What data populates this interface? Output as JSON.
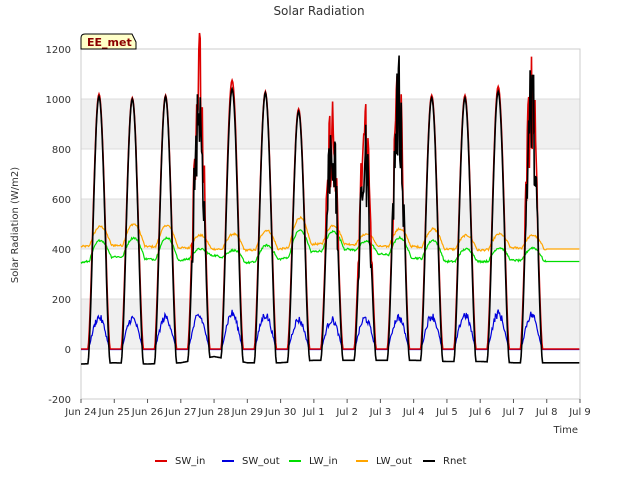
{
  "chart_data": {
    "type": "line",
    "title": "Solar Radiation",
    "xlabel": "Time",
    "ylabel": "Solar Radiation (W/m2)",
    "badge": "EE_met",
    "x_unit": "day",
    "xlim": [
      "Jun 24",
      "Jul 9"
    ],
    "ylim": [
      -200,
      1200
    ],
    "yticks": [
      -200,
      0,
      200,
      400,
      600,
      800,
      1000,
      1200
    ],
    "xticks": [
      "Jun 24",
      "Jun 25",
      "Jun 26",
      "Jun 27",
      "Jun 28",
      "Jun 29",
      "Jun 30",
      "Jul 1",
      "Jul 2",
      "Jul 3",
      "Jul 4",
      "Jul 5",
      "Jul 6",
      "Jul 7",
      "Jul 8",
      "Jul 9"
    ],
    "grid": true,
    "legend_position": "bottom",
    "days": [
      "Jun 24",
      "Jun 25",
      "Jun 26",
      "Jun 27",
      "Jun 28",
      "Jun 29",
      "Jun 30",
      "Jul 1",
      "Jul 2",
      "Jul 3",
      "Jul 4",
      "Jul 5",
      "Jul 6",
      "Jul 7",
      "Jul 8"
    ],
    "series": [
      {
        "name": "SW_in",
        "color": "#dd0000",
        "daily_peak": [
          1020,
          1005,
          1015,
          1090,
          1075,
          1030,
          960,
          880,
          880,
          1000,
          1015,
          1015,
          1050,
          1025
        ],
        "night": 0
      },
      {
        "name": "SW_out",
        "color": "#0000dd",
        "daily_peak": [
          130,
          125,
          130,
          135,
          145,
          140,
          120,
          120,
          125,
          130,
          135,
          140,
          145,
          140
        ],
        "night": -2
      },
      {
        "name": "LW_in",
        "color": "#00dd00",
        "daily_peak": [
          435,
          445,
          445,
          400,
          395,
          415,
          475,
          470,
          430,
          445,
          435,
          400,
          405,
          405
        ],
        "night": [
          345,
          370,
          360,
          355,
          375,
          345,
          360,
          390,
          400,
          380,
          365,
          350,
          350,
          355,
          350
        ]
      },
      {
        "name": "LW_out",
        "color": "#ffa500",
        "daily_peak": [
          490,
          500,
          495,
          455,
          460,
          475,
          525,
          495,
          460,
          480,
          480,
          455,
          460,
          455
        ],
        "night": [
          410,
          415,
          410,
          405,
          400,
          395,
          400,
          420,
          420,
          410,
          410,
          400,
          395,
          405,
          400
        ]
      },
      {
        "name": "Rnet",
        "color": "#000000",
        "daily_peak": [
          1010,
          1000,
          1010,
          980,
          1040,
          1025,
          950,
          850,
          770,
          990,
          1005,
          1005,
          1030,
          1000
        ],
        "night": [
          -60,
          -55,
          -60,
          -55,
          -30,
          -55,
          -55,
          -45,
          -45,
          -45,
          -45,
          -50,
          -50,
          -55,
          -55
        ]
      }
    ]
  }
}
